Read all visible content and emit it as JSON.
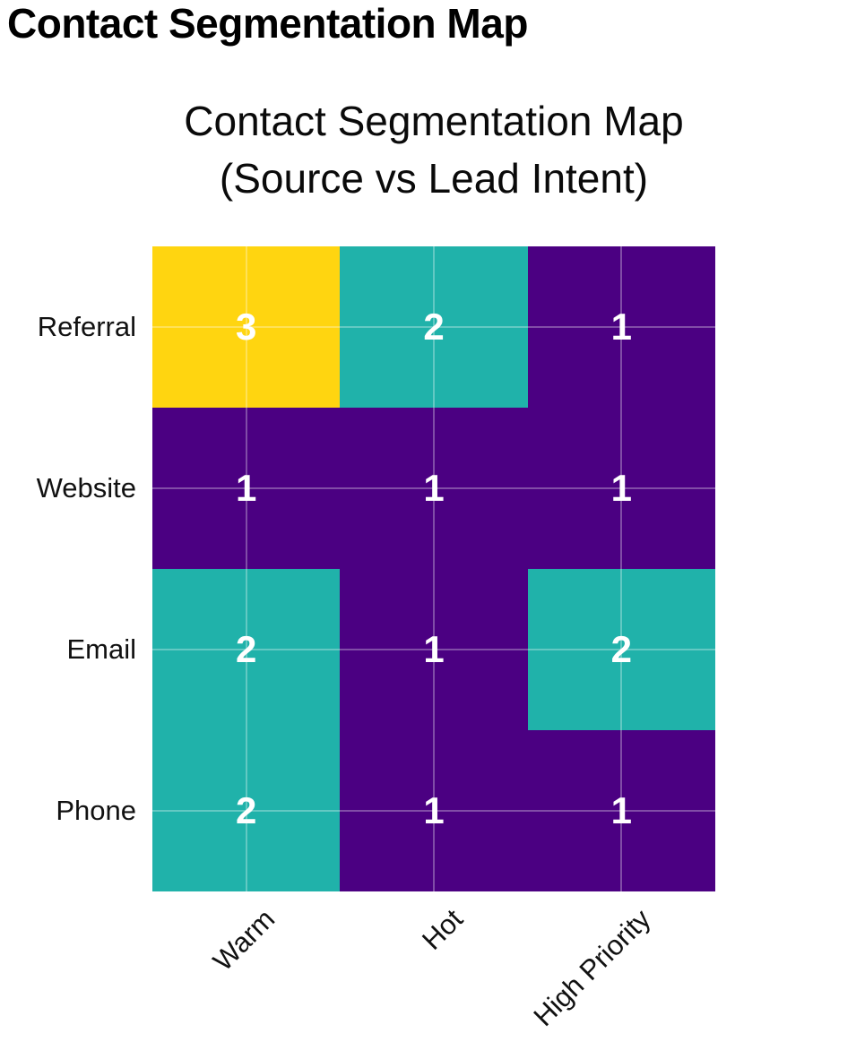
{
  "page": {
    "title": "Contact Segmentation Map"
  },
  "chart": {
    "title_line1": "Contact Segmentation Map",
    "title_line2": "(Source vs Lead Intent)"
  },
  "chart_data": {
    "type": "heatmap",
    "title": "Contact Segmentation Map (Source vs Lead Intent)",
    "rows": [
      "Referral",
      "Website",
      "Email",
      "Phone"
    ],
    "columns": [
      "Warm",
      "Hot",
      "High Priority"
    ],
    "values": [
      [
        3,
        2,
        1
      ],
      [
        1,
        1,
        1
      ],
      [
        2,
        1,
        2
      ],
      [
        2,
        1,
        1
      ]
    ],
    "value_colors": {
      "1": "#4B0082",
      "2": "#20B2AA",
      "3": "#FFD510"
    },
    "cell_text_color": "#FFFFFF",
    "gridline_color": "rgba(255,255,255,0.30)",
    "grid": "on",
    "legend": "none",
    "xlabel": "",
    "ylabel": "",
    "value_range": [
      1,
      3
    ]
  }
}
